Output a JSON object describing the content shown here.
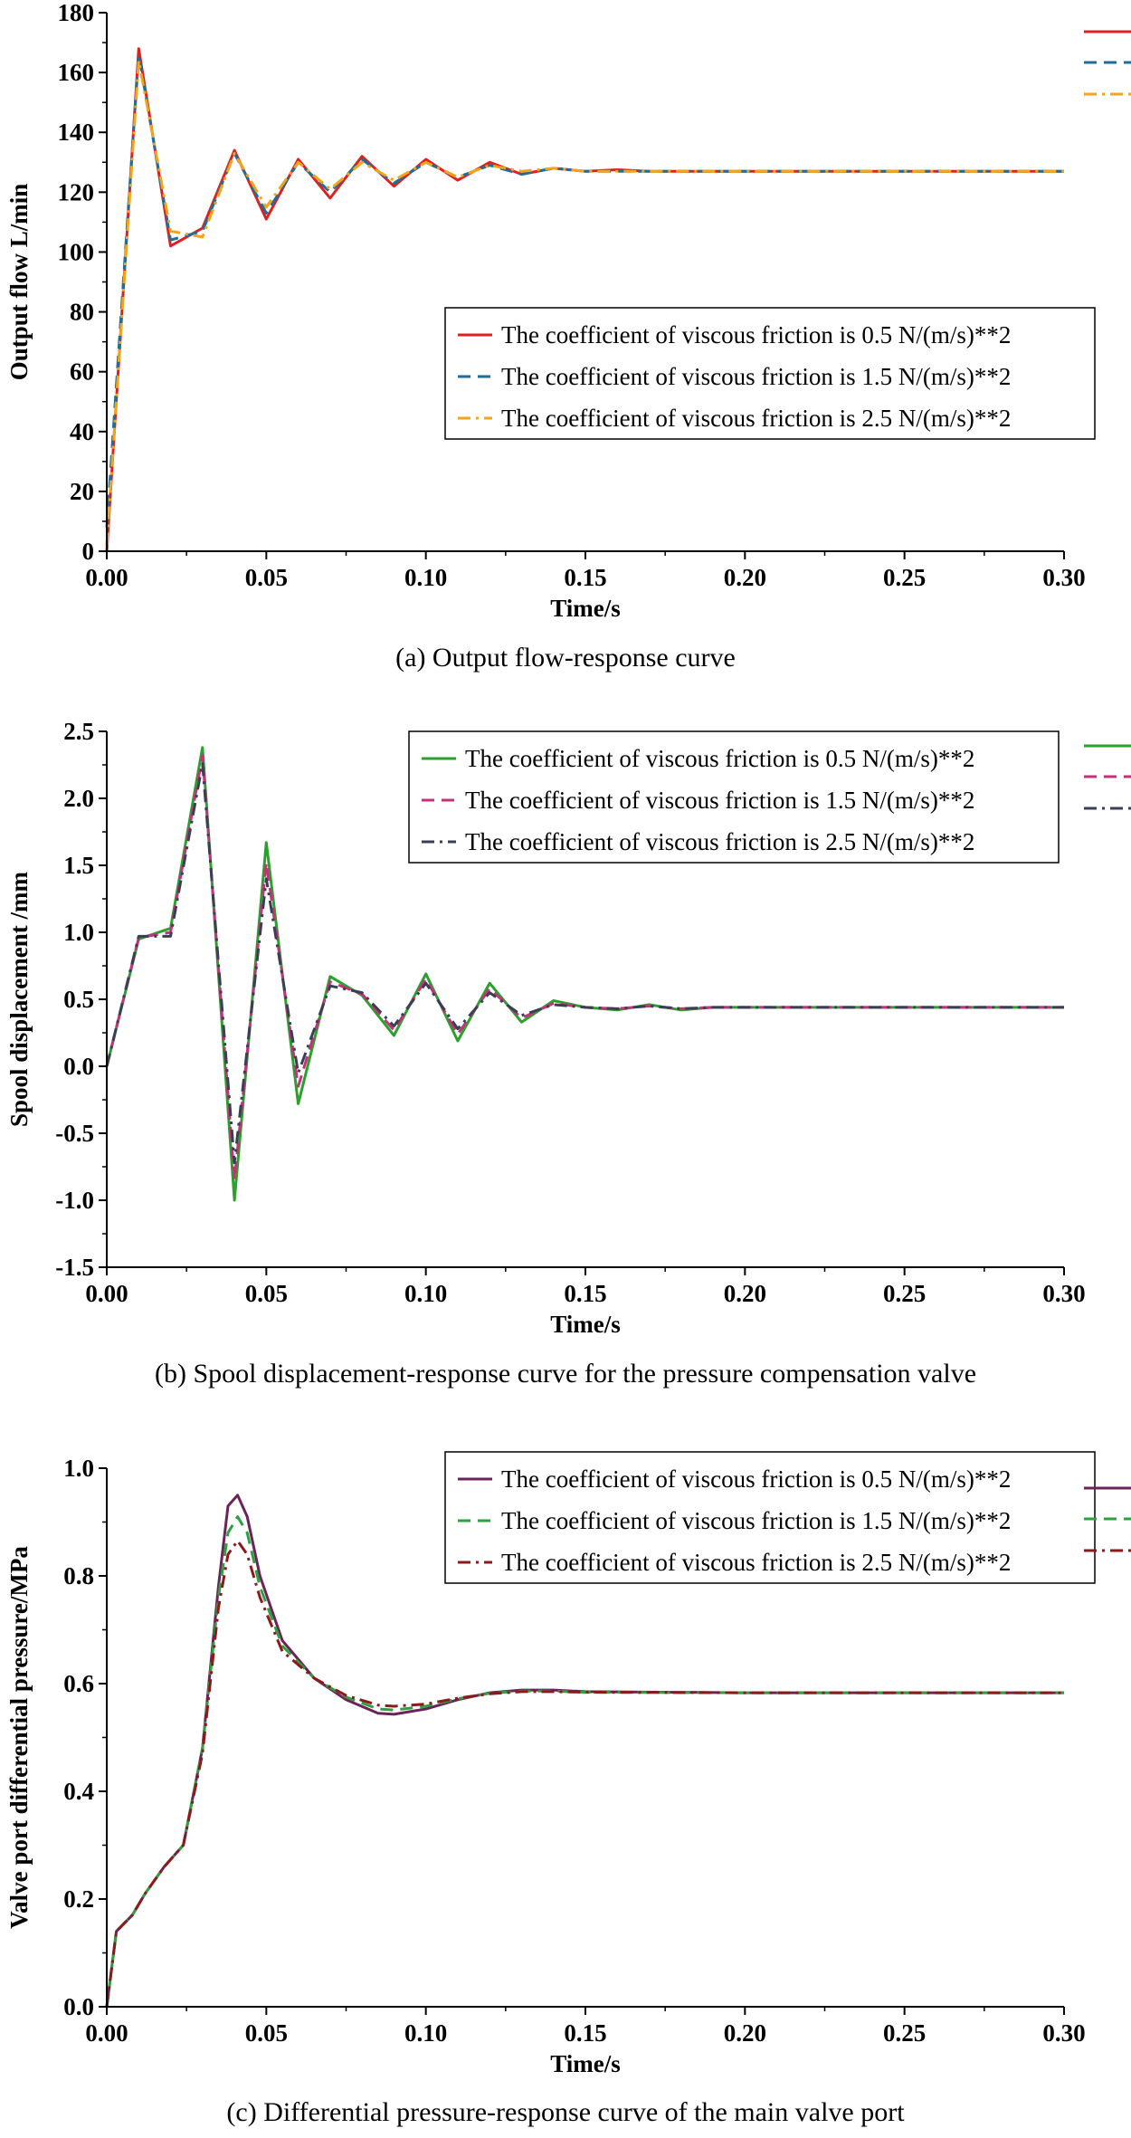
{
  "chart_data": [
    {
      "type": "line",
      "panel": "a",
      "caption": "(a) Output flow-response curve",
      "xlabel": "Time/s",
      "ylabel": "Output flow L/min",
      "xlim": [
        0,
        0.3
      ],
      "ylim": [
        0,
        180
      ],
      "xticks": [
        "0.00",
        "0.05",
        "0.10",
        "0.15",
        "0.20",
        "0.25",
        "0.30"
      ],
      "yticks": [
        "0",
        "20",
        "40",
        "60",
        "80",
        "100",
        "120",
        "140",
        "160",
        "180"
      ],
      "legend_position": "center-right",
      "series": [
        {
          "name": "The coefficient of viscous friction is 0.5 N/(m/s)**2",
          "color": "#e02020",
          "dash": "solid",
          "x": [
            0,
            0.01,
            0.02,
            0.03,
            0.04,
            0.05,
            0.06,
            0.07,
            0.08,
            0.09,
            0.1,
            0.11,
            0.12,
            0.13,
            0.14,
            0.15,
            0.16,
            0.17,
            0.18,
            0.19,
            0.2,
            0.25,
            0.3
          ],
          "values": [
            0,
            168,
            102,
            108,
            134,
            111,
            131,
            118,
            132,
            122,
            131,
            124,
            130,
            126,
            128,
            127,
            127.5,
            127,
            127,
            127,
            127,
            127,
            127
          ]
        },
        {
          "name": "The coefficient of viscous friction is 1.5 N/(m/s)**2",
          "color": "#1f6e9a",
          "dash": "dash",
          "x": [
            0,
            0.01,
            0.02,
            0.03,
            0.04,
            0.05,
            0.06,
            0.07,
            0.08,
            0.09,
            0.1,
            0.11,
            0.12,
            0.13,
            0.14,
            0.15,
            0.16,
            0.17,
            0.18,
            0.19,
            0.2,
            0.25,
            0.3
          ],
          "values": [
            8,
            166,
            104,
            107,
            133,
            113,
            130,
            120,
            131,
            123,
            130,
            125,
            129,
            126,
            128,
            127,
            127,
            127,
            127,
            127,
            127,
            127,
            127
          ]
        },
        {
          "name": "The coefficient of viscous friction is 2.5 N/(m/s)**2",
          "color": "#f2a51a",
          "dash": "dashdot",
          "x": [
            0,
            0.01,
            0.02,
            0.03,
            0.04,
            0.05,
            0.06,
            0.07,
            0.08,
            0.09,
            0.1,
            0.11,
            0.12,
            0.13,
            0.14,
            0.15,
            0.16,
            0.17,
            0.18,
            0.19,
            0.2,
            0.25,
            0.3
          ],
          "values": [
            2,
            164,
            107,
            105,
            133,
            115,
            130,
            121,
            130,
            124,
            130,
            125,
            129,
            127,
            128,
            127,
            127,
            127,
            127,
            127,
            127,
            127,
            127
          ]
        }
      ]
    },
    {
      "type": "line",
      "panel": "b",
      "caption": "(b) Spool displacement-response curve for the pressure compensation valve",
      "xlabel": "Time/s",
      "ylabel": "Spool displacement /mm",
      "xlim": [
        0,
        0.3
      ],
      "ylim": [
        -1.5,
        2.5
      ],
      "xticks": [
        "0.00",
        "0.05",
        "0.10",
        "0.15",
        "0.20",
        "0.25",
        "0.30"
      ],
      "yticks": [
        "-1.5",
        "-1.0",
        "-0.5",
        "0.0",
        "0.5",
        "1.0",
        "1.5",
        "2.0",
        "2.5"
      ],
      "legend_position": "top-right",
      "series": [
        {
          "name": "The coefficient of viscous friction is 0.5 N/(m/s)**2",
          "color": "#2ca02c",
          "dash": "solid",
          "x": [
            0,
            0.01,
            0.02,
            0.03,
            0.04,
            0.05,
            0.06,
            0.07,
            0.08,
            0.09,
            0.1,
            0.11,
            0.12,
            0.13,
            0.14,
            0.15,
            0.16,
            0.17,
            0.18,
            0.19,
            0.2,
            0.25,
            0.3
          ],
          "values": [
            0,
            0.95,
            1.03,
            2.38,
            -1.0,
            1.67,
            -0.28,
            0.67,
            0.53,
            0.23,
            0.69,
            0.19,
            0.62,
            0.33,
            0.49,
            0.44,
            0.42,
            0.46,
            0.42,
            0.44,
            0.44,
            0.44,
            0.44
          ]
        },
        {
          "name": "The coefficient of viscous friction is 1.5 N/(m/s)**2",
          "color": "#c2337a",
          "dash": "dash",
          "x": [
            0,
            0.01,
            0.02,
            0.03,
            0.04,
            0.05,
            0.06,
            0.07,
            0.08,
            0.09,
            0.1,
            0.11,
            0.12,
            0.13,
            0.14,
            0.15,
            0.16,
            0.17,
            0.18,
            0.19,
            0.2,
            0.25,
            0.3
          ],
          "values": [
            0,
            0.96,
            1.0,
            2.32,
            -0.85,
            1.52,
            -0.15,
            0.63,
            0.54,
            0.27,
            0.65,
            0.24,
            0.58,
            0.36,
            0.47,
            0.44,
            0.43,
            0.45,
            0.43,
            0.44,
            0.44,
            0.44,
            0.44
          ]
        },
        {
          "name": "The coefficient of viscous friction is 2.5 N/(m/s)**2",
          "color": "#3a3f55",
          "dash": "dashdot",
          "x": [
            0,
            0.01,
            0.02,
            0.03,
            0.04,
            0.05,
            0.06,
            0.07,
            0.08,
            0.09,
            0.1,
            0.11,
            0.12,
            0.13,
            0.14,
            0.15,
            0.16,
            0.17,
            0.18,
            0.19,
            0.2,
            0.25,
            0.3
          ],
          "values": [
            0,
            0.97,
            0.97,
            2.26,
            -0.72,
            1.4,
            -0.05,
            0.6,
            0.55,
            0.3,
            0.62,
            0.28,
            0.55,
            0.38,
            0.46,
            0.44,
            0.43,
            0.45,
            0.43,
            0.44,
            0.44,
            0.44,
            0.44
          ]
        }
      ]
    },
    {
      "type": "line",
      "panel": "c",
      "caption": "(c) Differential pressure-response curve of the main valve port",
      "xlabel": "Time/s",
      "ylabel": "Valve port differential pressure/MPa",
      "xlim": [
        0,
        0.3
      ],
      "ylim": [
        0,
        1.0
      ],
      "xticks": [
        "0.00",
        "0.05",
        "0.10",
        "0.15",
        "0.20",
        "0.25",
        "0.30"
      ],
      "yticks": [
        "0.0",
        "0.2",
        "0.4",
        "0.6",
        "0.8",
        "1.0"
      ],
      "legend_position": "top-right",
      "series": [
        {
          "name": "The coefficient of viscous friction is 0.5 N/(m/s)**2",
          "color": "#6b2457",
          "dash": "solid",
          "x": [
            0,
            0.003,
            0.008,
            0.012,
            0.018,
            0.024,
            0.03,
            0.035,
            0.038,
            0.041,
            0.044,
            0.048,
            0.055,
            0.065,
            0.075,
            0.085,
            0.09,
            0.1,
            0.11,
            0.12,
            0.13,
            0.14,
            0.15,
            0.2,
            0.25,
            0.3
          ],
          "values": [
            0,
            0.14,
            0.17,
            0.21,
            0.26,
            0.3,
            0.48,
            0.78,
            0.93,
            0.95,
            0.91,
            0.8,
            0.68,
            0.61,
            0.57,
            0.545,
            0.543,
            0.553,
            0.57,
            0.583,
            0.588,
            0.588,
            0.585,
            0.583,
            0.583,
            0.583
          ]
        },
        {
          "name": "The coefficient of viscous friction is 1.5 N/(m/s)**2",
          "color": "#2ea043",
          "dash": "dash",
          "x": [
            0,
            0.003,
            0.008,
            0.012,
            0.018,
            0.024,
            0.03,
            0.035,
            0.038,
            0.041,
            0.044,
            0.048,
            0.055,
            0.065,
            0.075,
            0.085,
            0.09,
            0.1,
            0.11,
            0.12,
            0.13,
            0.14,
            0.15,
            0.2,
            0.25,
            0.3
          ],
          "values": [
            0,
            0.14,
            0.17,
            0.21,
            0.26,
            0.3,
            0.48,
            0.76,
            0.88,
            0.91,
            0.88,
            0.78,
            0.67,
            0.61,
            0.575,
            0.553,
            0.551,
            0.558,
            0.572,
            0.582,
            0.586,
            0.586,
            0.584,
            0.583,
            0.583,
            0.583
          ]
        },
        {
          "name": "The coefficient of viscous friction is 2.5 N/(m/s)**2",
          "color": "#8b1a1a",
          "dash": "dashdot",
          "x": [
            0,
            0.003,
            0.008,
            0.012,
            0.018,
            0.024,
            0.03,
            0.035,
            0.038,
            0.041,
            0.044,
            0.048,
            0.055,
            0.065,
            0.075,
            0.085,
            0.09,
            0.1,
            0.11,
            0.12,
            0.13,
            0.14,
            0.15,
            0.2,
            0.25,
            0.3
          ],
          "values": [
            0,
            0.14,
            0.17,
            0.21,
            0.26,
            0.3,
            0.47,
            0.74,
            0.84,
            0.865,
            0.84,
            0.76,
            0.66,
            0.61,
            0.578,
            0.56,
            0.558,
            0.562,
            0.573,
            0.581,
            0.585,
            0.585,
            0.584,
            0.583,
            0.583,
            0.583
          ]
        }
      ]
    }
  ]
}
